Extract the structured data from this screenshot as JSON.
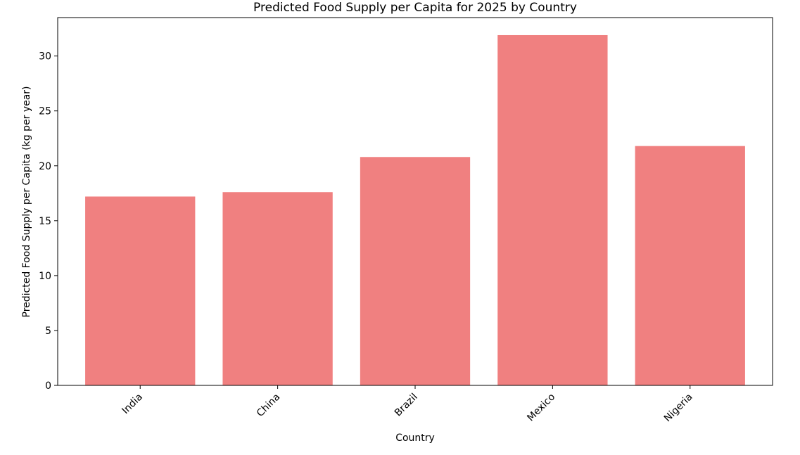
{
  "chart_data": {
    "type": "bar",
    "title": "Predicted Food Supply per Capita for 2025 by Country",
    "xlabel": "Country",
    "ylabel": "Predicted Food Supply per Capita (kg per year)",
    "categories": [
      "India",
      "China",
      "Brazil",
      "Mexico",
      "Nigeria"
    ],
    "values": [
      17.2,
      17.6,
      20.8,
      31.9,
      21.8
    ],
    "ylim": [
      0,
      33.5
    ],
    "yticks": [
      0,
      5,
      10,
      15,
      20,
      25,
      30
    ],
    "bar_color": "#f08080",
    "grid": false,
    "legend": "none"
  }
}
